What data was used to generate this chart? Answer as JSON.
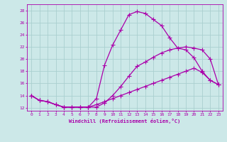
{
  "xlabel": "Windchill (Refroidissement éolien,°C)",
  "bg_color": "#cce8e8",
  "grid_color": "#aacfcf",
  "line_color": "#aa00aa",
  "xlim": [
    -0.5,
    23.5
  ],
  "ylim": [
    11.5,
    29.0
  ],
  "xticks": [
    0,
    1,
    2,
    3,
    4,
    5,
    6,
    7,
    8,
    9,
    10,
    11,
    12,
    13,
    14,
    15,
    16,
    17,
    18,
    19,
    20,
    21,
    22,
    23
  ],
  "yticks": [
    12,
    14,
    16,
    18,
    20,
    22,
    24,
    26,
    28
  ],
  "line1_x": [
    0,
    1,
    2,
    3,
    4,
    5,
    6,
    7,
    8,
    9,
    10,
    11,
    12,
    13,
    14,
    15,
    16,
    17,
    18,
    19,
    20,
    21,
    22,
    23
  ],
  "line1_y": [
    14.0,
    13.2,
    13.0,
    12.5,
    12.1,
    12.1,
    12.1,
    12.1,
    12.1,
    12.8,
    14.0,
    15.5,
    17.2,
    18.8,
    19.5,
    20.3,
    21.0,
    21.5,
    21.8,
    22.0,
    21.8,
    21.5,
    20.0,
    15.8
  ],
  "line2_x": [
    0,
    1,
    2,
    3,
    4,
    5,
    6,
    7,
    8,
    9,
    10,
    11,
    12,
    13,
    14,
    15,
    16,
    17,
    18,
    19,
    20,
    21,
    22,
    23
  ],
  "line2_y": [
    14.0,
    13.2,
    13.0,
    12.5,
    12.1,
    12.1,
    12.1,
    12.1,
    13.5,
    19.0,
    22.3,
    24.8,
    27.3,
    27.8,
    27.5,
    26.5,
    25.5,
    23.5,
    21.8,
    21.5,
    20.2,
    18.0,
    16.5,
    15.8
  ],
  "line3_x": [
    0,
    1,
    2,
    3,
    4,
    5,
    6,
    7,
    8,
    9,
    10,
    11,
    12,
    13,
    14,
    15,
    16,
    17,
    18,
    19,
    20,
    21,
    22,
    23
  ],
  "line3_y": [
    14.0,
    13.2,
    13.0,
    12.5,
    12.1,
    12.1,
    12.1,
    12.1,
    12.5,
    13.0,
    13.5,
    14.0,
    14.5,
    15.0,
    15.5,
    16.0,
    16.5,
    17.0,
    17.5,
    18.0,
    18.5,
    17.8,
    16.5,
    15.8
  ]
}
